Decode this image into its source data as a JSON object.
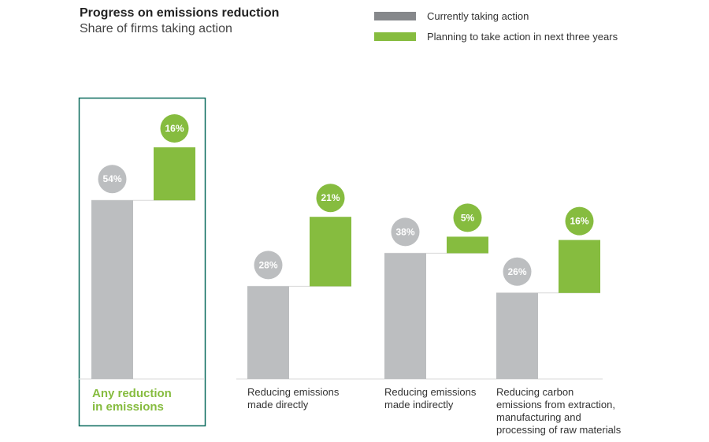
{
  "chart_data": {
    "type": "bar",
    "style": "stacked-waterfall",
    "title": "Progress on emissions reduction",
    "subtitle": "Share of firms taking action",
    "categories": [
      [
        "Any reduction",
        "in emissions"
      ],
      [
        "Reducing emissions",
        "made directly"
      ],
      [
        "Reducing emissions",
        "made indirectly"
      ],
      [
        "Reducing carbon",
        "emissions from extraction,",
        "manufacturing and",
        "processing of raw materials"
      ]
    ],
    "series": [
      {
        "name": "Currently taking action",
        "color": "#bcbec0",
        "values": [
          54,
          28,
          38,
          26
        ],
        "labels": [
          "54%",
          "28%",
          "38%",
          "26%"
        ]
      },
      {
        "name": "Planning to take action in next three years",
        "color": "#86bc3f",
        "values": [
          16,
          21,
          5,
          16
        ],
        "labels": [
          "16%",
          "21%",
          "5%",
          "16%"
        ]
      }
    ],
    "highlight_category_index": 0,
    "highlight_color": "#0b6b5e",
    "ylim": [
      0,
      100
    ],
    "xlabel": "",
    "ylabel": ""
  }
}
